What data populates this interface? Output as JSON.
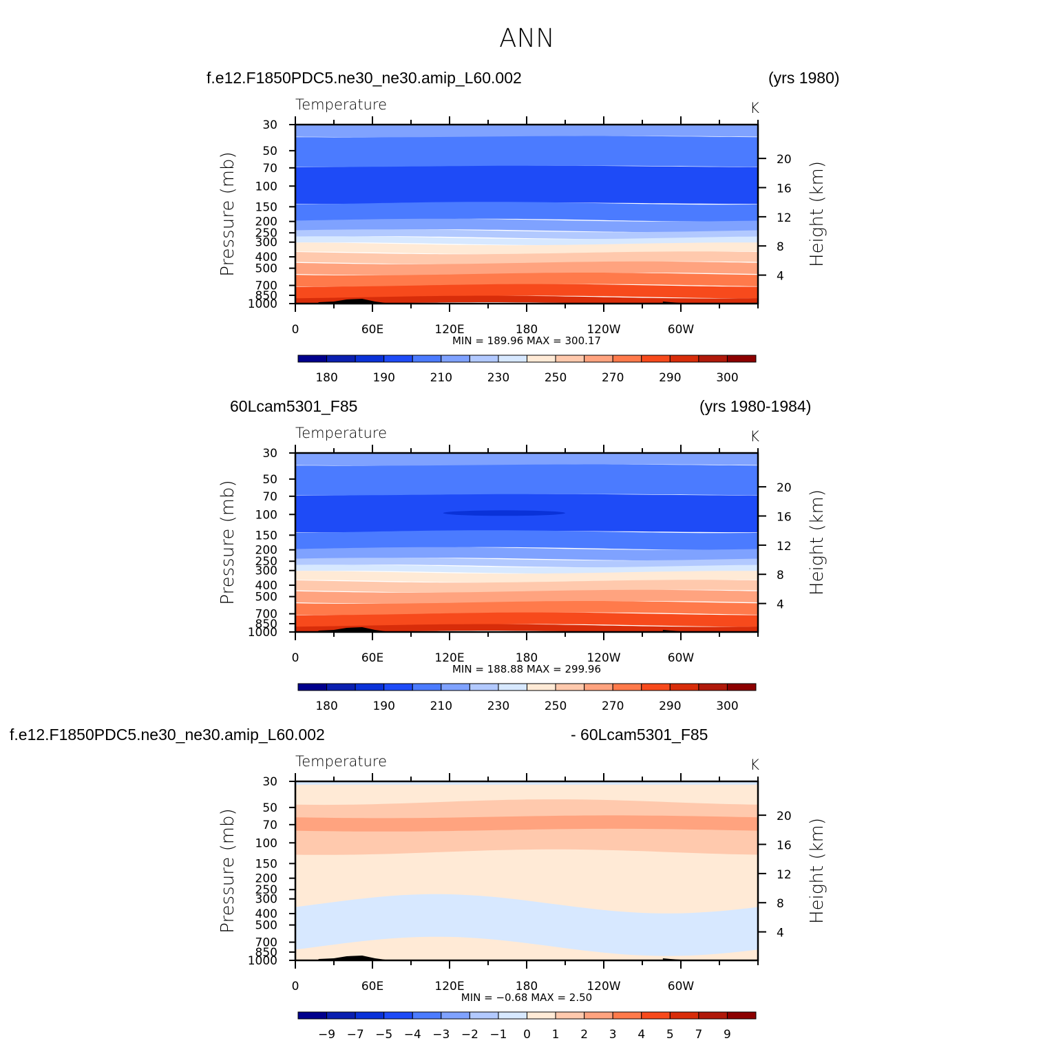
{
  "main_title": "ANN",
  "panels": [
    {
      "case_left": "f.e12.F1850PDC5.ne30_ne30.amip_L60.002",
      "case_right": "(yrs 1980)",
      "variable": "Temperature",
      "units": "K",
      "stats": "MIN =  189.96   MAX =  300.17",
      "colorbar_labels": [
        "180",
        "190",
        "210",
        "230",
        "250",
        "270",
        "290",
        "300"
      ]
    },
    {
      "case_left": "60Lcam5301_F85",
      "case_right": "(yrs 1980-1984)",
      "variable": "Temperature",
      "units": "K",
      "stats": "MIN =  188.88   MAX =  299.96",
      "colorbar_labels": [
        "180",
        "190",
        "210",
        "230",
        "250",
        "270",
        "290",
        "300"
      ]
    },
    {
      "case_left": "f.e12.F1850PDC5.ne30_ne30.amip_L60.002",
      "case_right": "- 60Lcam5301_F85",
      "variable": "Temperature",
      "units": "K",
      "stats": "MIN =   −0.68   MAX =     2.50",
      "colorbar_labels": [
        "−9",
        "−7",
        "−5",
        "−4",
        "−3",
        "−2",
        "−1",
        "0",
        "1",
        "2",
        "3",
        "4",
        "5",
        "7",
        "9"
      ]
    }
  ],
  "colors": {
    "palette": [
      "#00008c",
      "#0a1fb0",
      "#0a32d8",
      "#1e4bf7",
      "#4b7bff",
      "#7fa2ff",
      "#b2c9ff",
      "#d7e8ff",
      "#ffead6",
      "#ffc9ad",
      "#ffa37f",
      "#ff7a4b",
      "#f74a1c",
      "#d82d0a",
      "#b0190a",
      "#8c0000"
    ],
    "topography": "#000000"
  },
  "chart_data": [
    {
      "type": "heatmap",
      "title": "Temperature",
      "subtitle": "f.e12.F1850PDC5.ne30_ne30.amip_L60.002 (yrs 1980)",
      "xlabel": "",
      "ylabel": "Pressure (mb)",
      "ylabel_right": "Height (km)",
      "x_ticks": [
        "0",
        "60E",
        "120E",
        "180",
        "120W",
        "60W"
      ],
      "x_range": [
        0,
        360
      ],
      "y_ticks": [
        "30",
        "50",
        "70",
        "100",
        "150",
        "200",
        "250",
        "300",
        "400",
        "500",
        "700",
        "850",
        "1000"
      ],
      "y_range_mb": [
        30,
        1000
      ],
      "y_right_ticks": [
        "20",
        "16",
        "12",
        "8",
        "4"
      ],
      "contour_levels": [
        180,
        185,
        190,
        200,
        210,
        220,
        230,
        240,
        250,
        260,
        270,
        280,
        290,
        295,
        300
      ],
      "level_bands_by_pressure": [
        {
          "p_top": 30,
          "p_bottom": 38,
          "band": 5
        },
        {
          "p_top": 38,
          "p_bottom": 68,
          "band": 4
        },
        {
          "p_top": 68,
          "p_bottom": 140,
          "band": 3
        },
        {
          "p_top": 140,
          "p_bottom": 195,
          "band": 4
        },
        {
          "p_top": 195,
          "p_bottom": 240,
          "band": 5
        },
        {
          "p_top": 240,
          "p_bottom": 275,
          "band": 6
        },
        {
          "p_top": 275,
          "p_bottom": 310,
          "band": 7
        },
        {
          "p_top": 310,
          "p_bottom": 370,
          "band": 8
        },
        {
          "p_top": 370,
          "p_bottom": 450,
          "band": 9
        },
        {
          "p_top": 450,
          "p_bottom": 560,
          "band": 10
        },
        {
          "p_top": 560,
          "p_bottom": 700,
          "band": 11
        },
        {
          "p_top": 700,
          "p_bottom": 880,
          "band": 12
        },
        {
          "p_top": 880,
          "p_bottom": 1000,
          "band": 13
        }
      ],
      "min": 189.96,
      "max": 300.17
    },
    {
      "type": "heatmap",
      "title": "Temperature",
      "subtitle": "60Lcam5301_F85 (yrs 1980-1984)",
      "xlabel": "",
      "ylabel": "Pressure (mb)",
      "ylabel_right": "Height (km)",
      "x_ticks": [
        "0",
        "60E",
        "120E",
        "180",
        "120W",
        "60W"
      ],
      "x_range": [
        0,
        360
      ],
      "y_ticks": [
        "30",
        "50",
        "70",
        "100",
        "150",
        "200",
        "250",
        "300",
        "400",
        "500",
        "700",
        "850",
        "1000"
      ],
      "y_range_mb": [
        30,
        1000
      ],
      "y_right_ticks": [
        "20",
        "16",
        "12",
        "8",
        "4"
      ],
      "contour_levels": [
        180,
        185,
        190,
        200,
        210,
        220,
        230,
        240,
        250,
        260,
        270,
        280,
        290,
        295,
        300
      ],
      "level_bands_by_pressure": [
        {
          "p_top": 30,
          "p_bottom": 38,
          "band": 5
        },
        {
          "p_top": 38,
          "p_bottom": 68,
          "band": 4
        },
        {
          "p_top": 68,
          "p_bottom": 140,
          "band": 3
        },
        {
          "p_top": 140,
          "p_bottom": 195,
          "band": 4
        },
        {
          "p_top": 195,
          "p_bottom": 240,
          "band": 5
        },
        {
          "p_top": 240,
          "p_bottom": 275,
          "band": 6
        },
        {
          "p_top": 275,
          "p_bottom": 310,
          "band": 7
        },
        {
          "p_top": 310,
          "p_bottom": 370,
          "band": 8
        },
        {
          "p_top": 370,
          "p_bottom": 450,
          "band": 9
        },
        {
          "p_top": 450,
          "p_bottom": 560,
          "band": 10
        },
        {
          "p_top": 560,
          "p_bottom": 700,
          "band": 11
        },
        {
          "p_top": 700,
          "p_bottom": 880,
          "band": 12
        },
        {
          "p_top": 880,
          "p_bottom": 1000,
          "band": 13
        }
      ],
      "cold_spot": {
        "lon_from": 115,
        "lon_to": 210,
        "p_mb": 100,
        "band": 2
      },
      "min": 188.88,
      "max": 299.96
    },
    {
      "type": "heatmap",
      "title": "Temperature",
      "subtitle": "f.e12.F1850PDC5.ne30_ne30.amip_L60.002 - 60Lcam5301_F85",
      "xlabel": "",
      "ylabel": "Pressure (mb)",
      "ylabel_right": "Height (km)",
      "x_ticks": [
        "0",
        "60E",
        "120E",
        "180",
        "120W",
        "60W"
      ],
      "x_range": [
        0,
        360
      ],
      "y_ticks": [
        "30",
        "50",
        "70",
        "100",
        "150",
        "200",
        "250",
        "300",
        "400",
        "500",
        "700",
        "850",
        "1000"
      ],
      "y_range_mb": [
        30,
        1000
      ],
      "y_right_ticks": [
        "20",
        "16",
        "12",
        "8",
        "4"
      ],
      "contour_levels": [
        -9,
        -7,
        -5,
        -4,
        -3,
        -2,
        -1,
        0,
        1,
        2,
        3,
        4,
        5,
        7,
        9
      ],
      "regions": [
        {
          "value_range": [
            0,
            1
          ],
          "description": "background above 0"
        },
        {
          "value_range": [
            1,
            2
          ],
          "p_mb": [
            45,
            120
          ]
        },
        {
          "value_range": [
            2,
            3
          ],
          "p_mb": [
            60,
            78
          ]
        },
        {
          "value_range": [
            -1,
            0
          ],
          "p_mb": [
            280,
            800
          ],
          "description": "mid-troposphere band"
        }
      ],
      "min": -0.68,
      "max": 2.5
    }
  ]
}
